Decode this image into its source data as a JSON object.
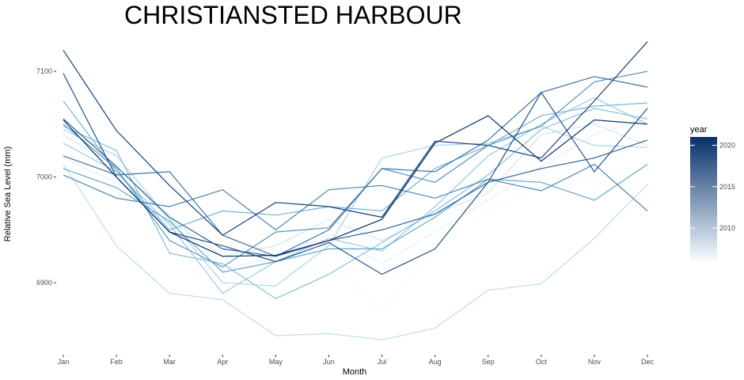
{
  "chart_data": {
    "type": "line",
    "title": "CHRISTIANSTED HARBOUR",
    "xlabel": "Month",
    "ylabel": "Relative Sea Level (mm)",
    "categories": [
      "Jan",
      "Feb",
      "Mar",
      "Apr",
      "May",
      "Jun",
      "Jul",
      "Aug",
      "Sep",
      "Oct",
      "Nov",
      "Dec"
    ],
    "ylim": [
      6835,
      7130
    ],
    "yticks": [
      6900,
      7000,
      7100
    ],
    "grid": false,
    "color_scale": {
      "title": "year",
      "min_year": 2006,
      "max_year": 2021,
      "ticks": [
        2010,
        2015,
        2020
      ],
      "low_color": "#f7fbff",
      "high_color": "#08306b"
    },
    "series": [
      {
        "year": 2006,
        "values": [
          7028,
          6985,
          6955,
          6905,
          6910,
          6920,
          6872,
          6935,
          6968,
          6990,
          6995,
          7012
        ]
      },
      {
        "year": 2007,
        "values": [
          7018,
          6995,
          6965,
          6912,
          6925,
          6945,
          6918,
          6948,
          6978,
          7010,
          7040,
          7055
        ]
      },
      {
        "year": 2008,
        "values": [
          7040,
          7010,
          6960,
          6925,
          6935,
          6960,
          6940,
          6965,
          6985,
          7040,
          7050,
          7030
        ]
      },
      {
        "year": 2009,
        "values": [
          7012,
          6935,
          6890,
          6884,
          6850,
          6852,
          6846,
          6857,
          6893,
          6899,
          6942,
          6993
        ]
      },
      {
        "year": 2010,
        "values": [
          7045,
          7020,
          6960,
          6900,
          6897,
          6935,
          7018,
          7030,
          7032,
          7048,
          7030,
          7028
        ]
      },
      {
        "year": 2011,
        "values": [
          7032,
          7005,
          6955,
          6890,
          6920,
          6942,
          6930,
          6972,
          7020,
          7050,
          7075,
          7050
        ]
      },
      {
        "year": 2012,
        "values": [
          7048,
          7025,
          6928,
          6918,
          6885,
          6908,
          6938,
          6968,
          7002,
          7045,
          7065,
          7055
        ]
      },
      {
        "year": 2013,
        "values": [
          7072,
          7005,
          6950,
          6968,
          6964,
          6972,
          6968,
          7008,
          7030,
          7058,
          7067,
          7070
        ]
      },
      {
        "year": 2014,
        "values": [
          7008,
          6990,
          6958,
          6910,
          6920,
          6932,
          6932,
          6962,
          6998,
          6995,
          6978,
          7012
        ]
      },
      {
        "year": 2015,
        "values": [
          7050,
          7008,
          6940,
          6915,
          6948,
          6952,
          7008,
          6995,
          7030,
          7048,
          7090,
          7100
        ]
      },
      {
        "year": 2016,
        "values": [
          7002,
          6980,
          6972,
          6988,
          6950,
          6988,
          6992,
          6980,
          6998,
          6987,
          7012,
          6968
        ]
      },
      {
        "year": 2017,
        "values": [
          7020,
          7002,
          7005,
          6945,
          6925,
          6950,
          7008,
          7005,
          7035,
          7080,
          7095,
          7085
        ]
      },
      {
        "year": 2018,
        "values": [
          7055,
          7010,
          6962,
          6932,
          6925,
          6940,
          6950,
          6965,
          6995,
          7008,
          7018,
          7035
        ]
      },
      {
        "year": 2019,
        "values": [
          7098,
          7000,
          6948,
          6935,
          6920,
          6938,
          6908,
          6932,
          6995,
          7080,
          7005,
          7065
        ]
      },
      {
        "year": 2020,
        "values": [
          7120,
          7044,
          6992,
          6945,
          6976,
          6972,
          6962,
          7034,
          7030,
          7018,
          7072,
          7128
        ]
      },
      {
        "year": 2021,
        "values": [
          7054,
          7000,
          6948,
          6925,
          6926,
          6940,
          6960,
          7032,
          7058,
          7015,
          7054,
          7050
        ]
      }
    ]
  }
}
